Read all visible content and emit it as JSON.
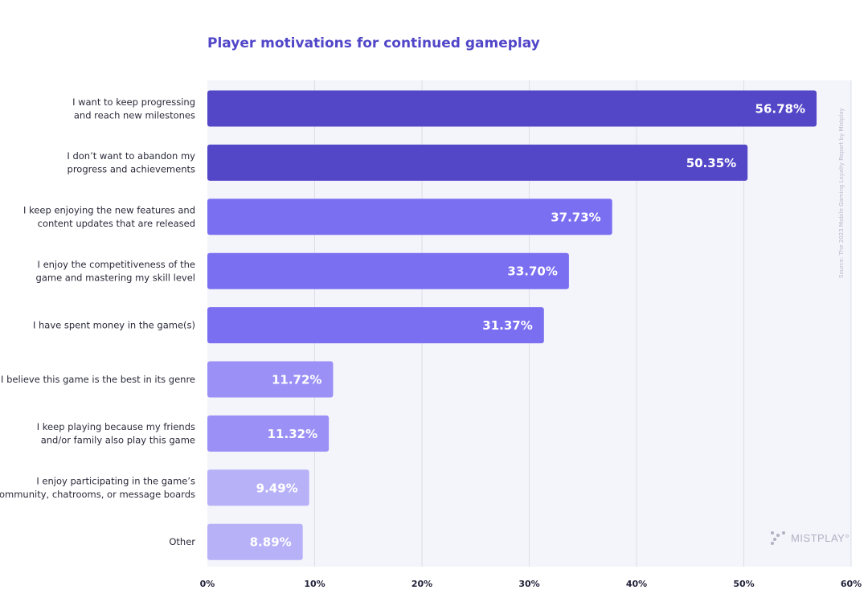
{
  "chart_data": {
    "type": "bar",
    "orientation": "horizontal",
    "title": "Player motivations for continued gameplay",
    "categories": [
      [
        "I want to keep progressing",
        "and reach new milestones"
      ],
      [
        "I don’t want to abandon my",
        "progress and achievements"
      ],
      [
        "I keep enjoying the new features and",
        "content updates that are released"
      ],
      [
        "I enjoy the competitiveness of the",
        "game and mastering my skill level"
      ],
      [
        "I have spent money in the game(s)"
      ],
      [
        "I believe this game is the best in its genre"
      ],
      [
        "I keep playing because my friends",
        "and/or family also play this game"
      ],
      [
        "I enjoy participating in the game’s",
        "community, chatrooms, or message boards"
      ],
      [
        "Other"
      ]
    ],
    "values": [
      56.78,
      50.35,
      37.73,
      33.7,
      31.37,
      11.72,
      11.32,
      9.49,
      8.89
    ],
    "value_labels": [
      "56.78%",
      "50.35%",
      "37.73%",
      "33.70%",
      "31.37%",
      "11.72%",
      "11.32%",
      "9.49%",
      "8.89%"
    ],
    "bar_colors": [
      "#5346c7",
      "#5346c7",
      "#7b6ff1",
      "#7b6ff1",
      "#7b6ff1",
      "#9a90f5",
      "#9a90f5",
      "#b7b1f8",
      "#b7b1f8"
    ],
    "xlim": [
      0,
      60
    ],
    "x_ticks": [
      0,
      10,
      20,
      30,
      40,
      50,
      60
    ],
    "x_tick_labels": [
      "0%",
      "10%",
      "20%",
      "30%",
      "40%",
      "50%",
      "60%"
    ],
    "grid": true,
    "plot_background": "#f4f5fa",
    "gridline_color": "#dcdde8"
  },
  "source_note": "Source: The 2023 Mobile Gaming Loyalty Report by Mistplay",
  "logo_text": "MISTPLAY°"
}
